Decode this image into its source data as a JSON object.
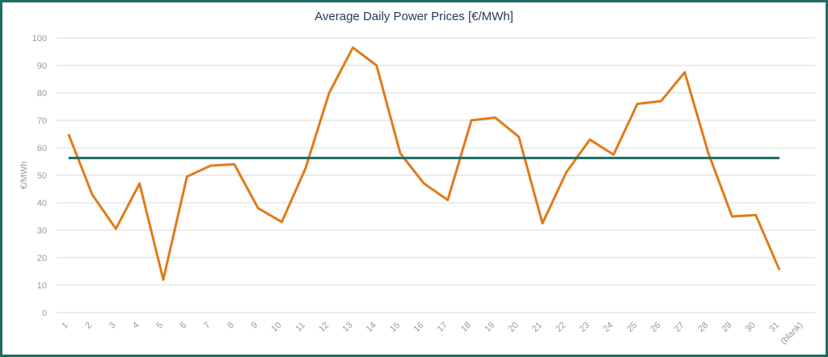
{
  "chart_data": {
    "type": "line",
    "title": "Average Daily Power Prices [€/MWh]",
    "xlabel": "",
    "ylabel": "€/MWh",
    "ylim": [
      0,
      100
    ],
    "yticks": [
      0,
      10,
      20,
      30,
      40,
      50,
      60,
      70,
      80,
      90,
      100
    ],
    "categories": [
      "1",
      "2",
      "3",
      "4",
      "5",
      "6",
      "7",
      "8",
      "9",
      "10",
      "11",
      "12",
      "13",
      "14",
      "15",
      "16",
      "17",
      "18",
      "19",
      "20",
      "21",
      "22",
      "23",
      "24",
      "25",
      "26",
      "27",
      "28",
      "29",
      "30",
      "31",
      "(blank)"
    ],
    "grid": true,
    "legend": "none",
    "series": [
      {
        "color": "#e07b1a",
        "values": [
          65,
          43,
          30.5,
          47,
          12,
          49.5,
          53.5,
          54,
          38,
          33,
          52.5,
          80,
          96.5,
          90,
          58,
          47,
          41,
          70,
          71,
          64,
          32.5,
          51,
          63,
          57.5,
          76,
          77,
          87.5,
          58,
          35,
          35.5,
          15.5,
          null
        ]
      },
      {
        "color": "#1d6b63",
        "values": [
          56.3,
          56.3,
          56.3,
          56.3,
          56.3,
          56.3,
          56.3,
          56.3,
          56.3,
          56.3,
          56.3,
          56.3,
          56.3,
          56.3,
          56.3,
          56.3,
          56.3,
          56.3,
          56.3,
          56.3,
          56.3,
          56.3,
          56.3,
          56.3,
          56.3,
          56.3,
          56.3,
          56.3,
          56.3,
          56.3,
          56.3,
          null
        ]
      }
    ]
  }
}
